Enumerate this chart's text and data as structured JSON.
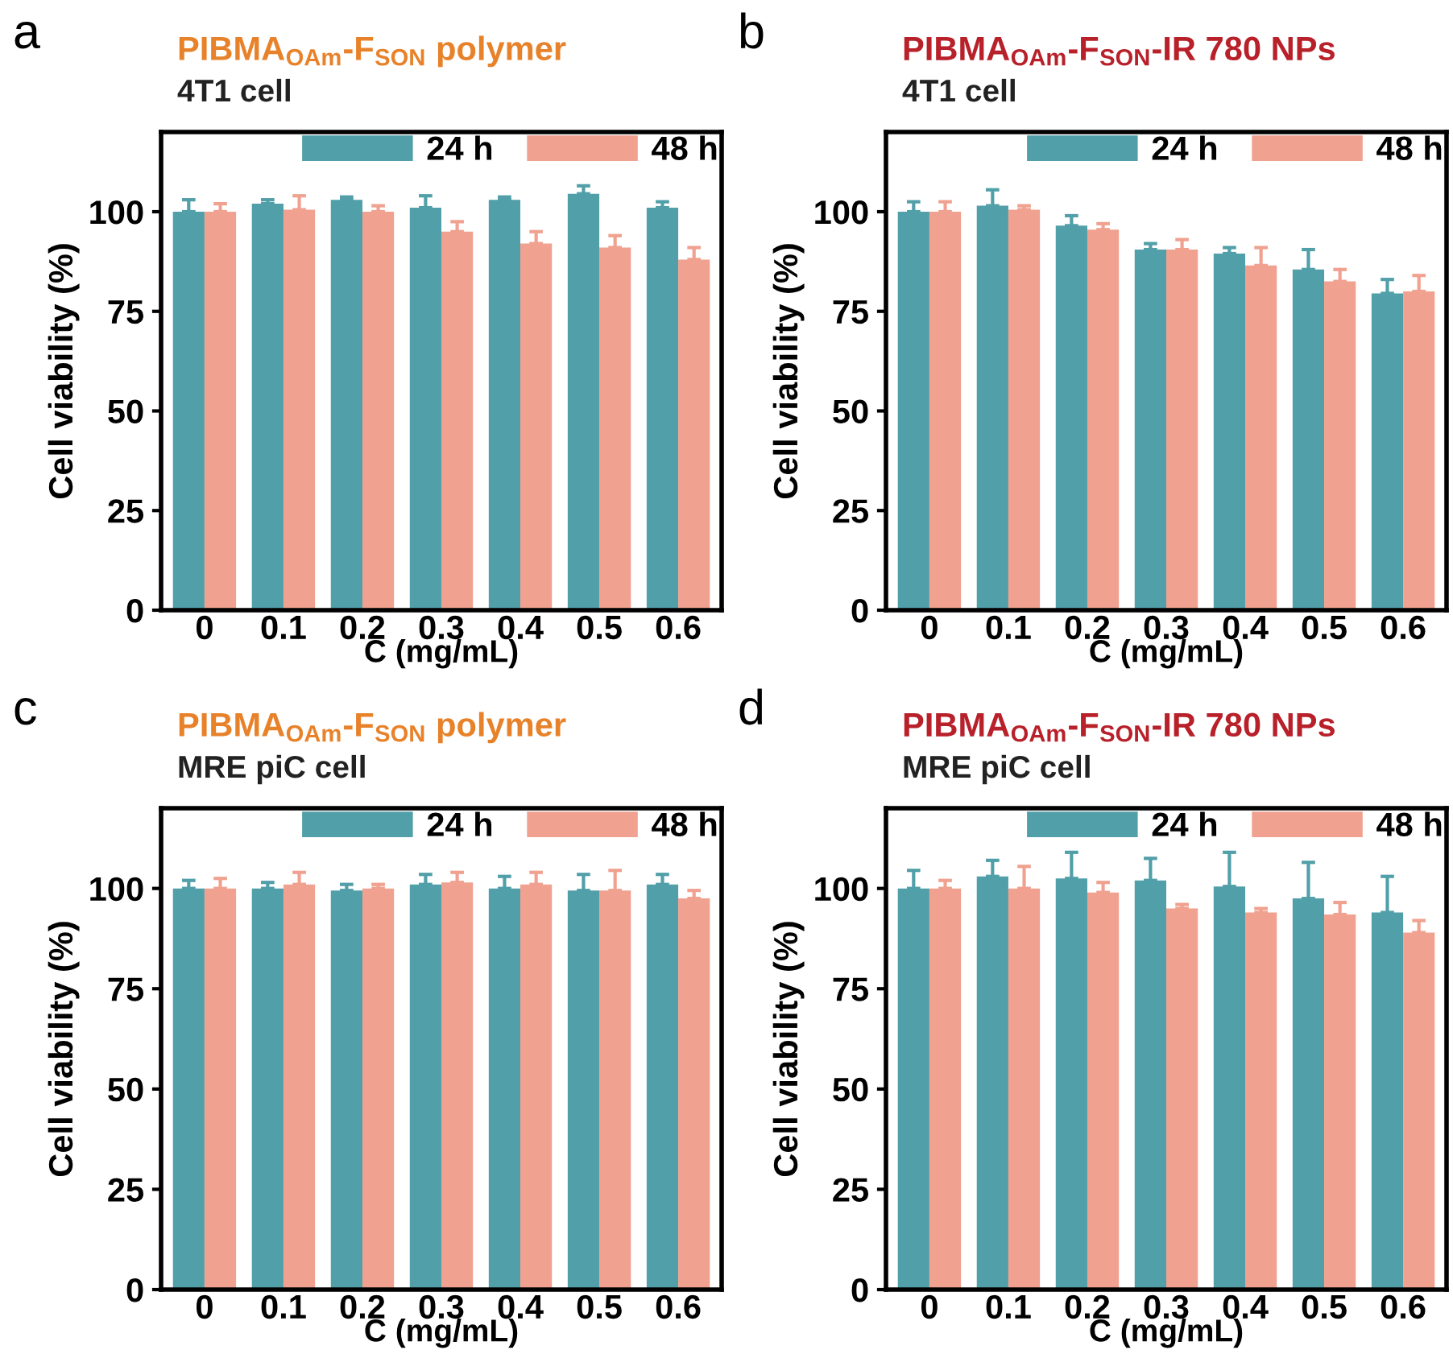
{
  "chart_data": [
    {
      "type": "bar",
      "title": "PIBMA$_{OAm}$-F$_{SON}$ polymer",
      "subtitle": "4T1 cell",
      "annotations": [
        "a"
      ],
      "xlabel": "C (mg/mL)",
      "ylabel": "Cell viability (%)",
      "categories": [
        "0",
        "0.1",
        "0.2",
        "0.3",
        "0.4",
        "0.5",
        "0.6"
      ],
      "ylim": [
        0,
        120
      ],
      "yticks": [
        0,
        25,
        50,
        75,
        100
      ],
      "legend": "top right",
      "grid": false,
      "series": [
        {
          "name": "24 h",
          "color": "#519fa9",
          "values": [
            100,
            102,
            103,
            101,
            103,
            104.5,
            101
          ],
          "errors": [
            [
              100,
              103
            ],
            [
              102,
              103
            ],
            [
              103,
              103.7
            ],
            [
              101,
              104
            ],
            [
              103,
              103.7
            ],
            [
              104.5,
              106.5
            ],
            [
              101,
              102.5
            ]
          ]
        },
        {
          "name": "48 h",
          "color": "#f0a18f",
          "values": [
            100,
            100.5,
            100,
            95,
            92,
            91,
            88
          ],
          "errors": [
            [
              100,
              102
            ],
            [
              100.5,
              104
            ],
            [
              100,
              101.5
            ],
            [
              95,
              97.5
            ],
            [
              92,
              95
            ],
            [
              91,
              94
            ],
            [
              88,
              91
            ]
          ]
        }
      ]
    },
    {
      "type": "bar",
      "title": "PIBMA$_{OAm}$-F$_{SON}$-IR 780 NPs",
      "subtitle": "4T1 cell",
      "annotations": [
        "b"
      ],
      "xlabel": "C (mg/mL)",
      "ylabel": "Cell viability (%)",
      "categories": [
        "0",
        "0.1",
        "0.2",
        "0.3",
        "0.4",
        "0.5",
        "0.6"
      ],
      "ylim": [
        0,
        120
      ],
      "yticks": [
        0,
        25,
        50,
        75,
        100
      ],
      "legend": "top right",
      "grid": false,
      "series": [
        {
          "name": "24 h",
          "color": "#519fa9",
          "values": [
            100,
            101.5,
            96.5,
            90.5,
            89.5,
            85.5,
            79.5
          ],
          "errors": [
            [
              100,
              102.5
            ],
            [
              101.5,
              105.5
            ],
            [
              96.5,
              99
            ],
            [
              90.5,
              92
            ],
            [
              89.5,
              91
            ],
            [
              85.5,
              90.5
            ],
            [
              79.5,
              83
            ]
          ]
        },
        {
          "name": "48 h",
          "color": "#f0a18f",
          "values": [
            100,
            100.5,
            95.5,
            90.5,
            86.5,
            82.5,
            80
          ],
          "errors": [
            [
              100,
              102.5
            ],
            [
              100.5,
              101.5
            ],
            [
              95.5,
              97
            ],
            [
              90.5,
              93
            ],
            [
              86.5,
              91
            ],
            [
              82.5,
              85.5
            ],
            [
              80,
              84
            ]
          ]
        }
      ]
    },
    {
      "type": "bar",
      "title": "PIBMA$_{OAm}$-F$_{SON}$ polymer",
      "subtitle": "MRE piC cell",
      "annotations": [
        "c"
      ],
      "xlabel": "C (mg/mL)",
      "ylabel": "Cell viability (%)",
      "categories": [
        "0",
        "0.1",
        "0.2",
        "0.3",
        "0.4",
        "0.5",
        "0.6"
      ],
      "ylim": [
        0,
        120
      ],
      "yticks": [
        0,
        25,
        50,
        75,
        100
      ],
      "legend": "top right",
      "grid": false,
      "series": [
        {
          "name": "24 h",
          "color": "#519fa9",
          "values": [
            100,
            100,
            99.5,
            101,
            100,
            99.5,
            101
          ],
          "errors": [
            [
              100,
              102
            ],
            [
              100,
              101.5
            ],
            [
              99.5,
              101
            ],
            [
              101,
              103.5
            ],
            [
              100,
              103
            ],
            [
              99.5,
              103.5
            ],
            [
              101,
              103.5
            ]
          ]
        },
        {
          "name": "48 h",
          "color": "#f0a18f",
          "values": [
            100,
            101,
            100,
            101.5,
            101,
            99.5,
            97.5
          ],
          "errors": [
            [
              100,
              102.5
            ],
            [
              101,
              104
            ],
            [
              100,
              101
            ],
            [
              101.5,
              104
            ],
            [
              101,
              104
            ],
            [
              99.5,
              104.5
            ],
            [
              97.5,
              99.5
            ]
          ]
        }
      ]
    },
    {
      "type": "bar",
      "title": "PIBMA$_{OAm}$-F$_{SON}$-IR 780 NPs",
      "subtitle": "MRE piC cell",
      "annotations": [
        "d"
      ],
      "xlabel": "C (mg/mL)",
      "ylabel": "Cell viability (%)",
      "categories": [
        "0",
        "0.1",
        "0.2",
        "0.3",
        "0.4",
        "0.5",
        "0.6"
      ],
      "ylim": [
        0,
        120
      ],
      "yticks": [
        0,
        25,
        50,
        75,
        100
      ],
      "legend": "top right",
      "grid": false,
      "series": [
        {
          "name": "24 h",
          "color": "#519fa9",
          "values": [
            100,
            103,
            102.5,
            102,
            100.5,
            97.5,
            94
          ],
          "errors": [
            [
              100,
              104.5
            ],
            [
              103,
              107
            ],
            [
              102.5,
              109
            ],
            [
              102,
              107.5
            ],
            [
              100.5,
              109
            ],
            [
              97.5,
              106.5
            ],
            [
              94,
              103
            ]
          ]
        },
        {
          "name": "48 h",
          "color": "#f0a18f",
          "values": [
            100,
            100,
            99,
            95,
            94,
            93.5,
            89
          ],
          "errors": [
            [
              100,
              102
            ],
            [
              100,
              105.5
            ],
            [
              99,
              101.5
            ],
            [
              95,
              96
            ],
            [
              94,
              95
            ],
            [
              93.5,
              96.5
            ],
            [
              89,
              92
            ]
          ]
        }
      ]
    }
  ]
}
